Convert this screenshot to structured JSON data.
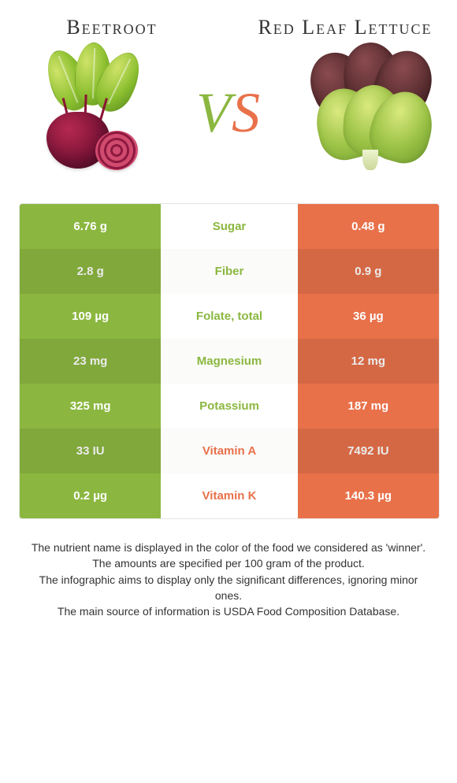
{
  "colors": {
    "green": "#8bb740",
    "orange": "#e8714a",
    "bg": "#ffffff",
    "text": "#333333"
  },
  "header": {
    "left_title": "Beetroot",
    "right_title": "Red Leaf Lettuce",
    "vs_v": "V",
    "vs_s": "S"
  },
  "table": {
    "rows": [
      {
        "nutrient": "Sugar",
        "left": "6.76 g",
        "right": "0.48 g",
        "winner": "left"
      },
      {
        "nutrient": "Fiber",
        "left": "2.8 g",
        "right": "0.9 g",
        "winner": "left"
      },
      {
        "nutrient": "Folate, total",
        "left": "109 µg",
        "right": "36 µg",
        "winner": "left"
      },
      {
        "nutrient": "Magnesium",
        "left": "23 mg",
        "right": "12 mg",
        "winner": "left"
      },
      {
        "nutrient": "Potassium",
        "left": "325 mg",
        "right": "187 mg",
        "winner": "left"
      },
      {
        "nutrient": "Vitamin A",
        "left": "33 IU",
        "right": "7492 IU",
        "winner": "right"
      },
      {
        "nutrient": "Vitamin K",
        "left": "0.2 µg",
        "right": "140.3 µg",
        "winner": "right"
      }
    ]
  },
  "footer": {
    "line1": "The nutrient name is displayed in the color of the food we considered as 'winner'.",
    "line2": "The amounts are specified per 100 gram of the product.",
    "line3": "The infographic aims to display only the significant differences, ignoring minor ones.",
    "line4": "The main source of information is USDA Food Composition Database."
  }
}
